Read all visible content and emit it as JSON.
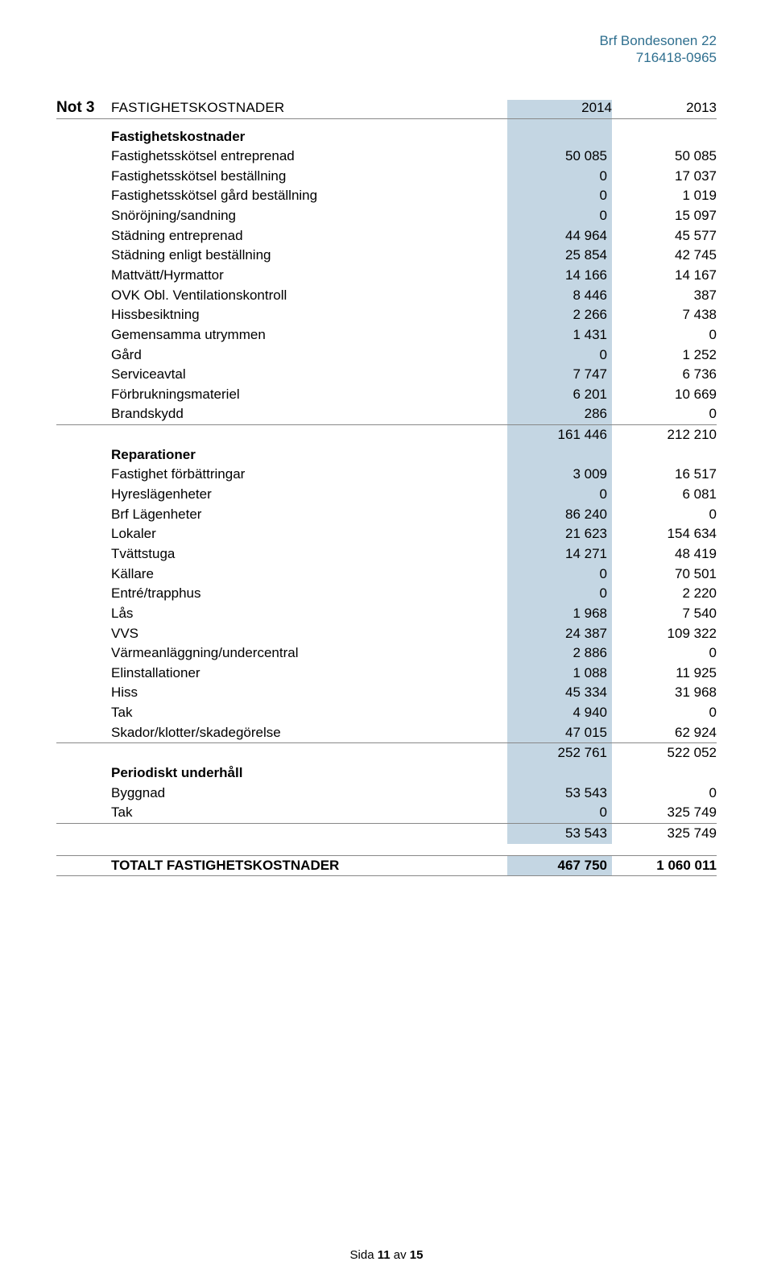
{
  "header": {
    "org_name": "Brf Bondesonen 22",
    "org_number": "716418-0965"
  },
  "note": {
    "number": "Not 3",
    "title": "FASTIGHETSKOSTNADER",
    "year1": "2014",
    "year2": "2013"
  },
  "sections": [
    {
      "heading": "Fastighetskostnader",
      "rows": [
        {
          "label": "Fastighetsskötsel entreprenad",
          "c1": "50 085",
          "c2": "50 085"
        },
        {
          "label": "Fastighetsskötsel beställning",
          "c1": "0",
          "c2": "17 037"
        },
        {
          "label": "Fastighetsskötsel gård beställning",
          "c1": "0",
          "c2": "1 019"
        },
        {
          "label": "Snöröjning/sandning",
          "c1": "0",
          "c2": "15 097"
        },
        {
          "label": "Städning entreprenad",
          "c1": "44 964",
          "c2": "45 577"
        },
        {
          "label": "Städning enligt beställning",
          "c1": "25 854",
          "c2": "42 745"
        },
        {
          "label": "Mattvätt/Hyrmattor",
          "c1": "14 166",
          "c2": "14 167"
        },
        {
          "label": "OVK Obl. Ventilationskontroll",
          "c1": "8 446",
          "c2": "387"
        },
        {
          "label": "Hissbesiktning",
          "c1": "2 266",
          "c2": "7 438"
        },
        {
          "label": "Gemensamma utrymmen",
          "c1": "1 431",
          "c2": "0"
        },
        {
          "label": "Gård",
          "c1": "0",
          "c2": "1 252"
        },
        {
          "label": "Serviceavtal",
          "c1": "7 747",
          "c2": "6 736"
        },
        {
          "label": "Förbrukningsmateriel",
          "c1": "6 201",
          "c2": "10 669"
        },
        {
          "label": "Brandskydd",
          "c1": "286",
          "c2": "0"
        }
      ],
      "subtotal": {
        "c1": "161 446",
        "c2": "212 210"
      }
    },
    {
      "heading": "Reparationer",
      "rows": [
        {
          "label": "Fastighet förbättringar",
          "c1": "3 009",
          "c2": "16 517"
        },
        {
          "label": "Hyreslägenheter",
          "c1": "0",
          "c2": "6 081"
        },
        {
          "label": "Brf Lägenheter",
          "c1": "86 240",
          "c2": "0"
        },
        {
          "label": "Lokaler",
          "c1": "21 623",
          "c2": "154 634"
        },
        {
          "label": "Tvättstuga",
          "c1": "14 271",
          "c2": "48 419"
        },
        {
          "label": "Källare",
          "c1": "0",
          "c2": "70 501"
        },
        {
          "label": "Entré/trapphus",
          "c1": "0",
          "c2": "2 220"
        },
        {
          "label": "Lås",
          "c1": "1 968",
          "c2": "7 540"
        },
        {
          "label": "VVS",
          "c1": "24 387",
          "c2": "109 322"
        },
        {
          "label": "Värmeanläggning/undercentral",
          "c1": "2 886",
          "c2": "0"
        },
        {
          "label": "Elinstallationer",
          "c1": "1 088",
          "c2": "11 925"
        },
        {
          "label": "Hiss",
          "c1": "45 334",
          "c2": "31 968"
        },
        {
          "label": "Tak",
          "c1": "4 940",
          "c2": "0"
        },
        {
          "label": "Skador/klotter/skadegörelse",
          "c1": "47 015",
          "c2": "62 924"
        }
      ],
      "subtotal": {
        "c1": "252 761",
        "c2": "522 052"
      }
    },
    {
      "heading": "Periodiskt underhåll",
      "rows": [
        {
          "label": "Byggnad",
          "c1": "53 543",
          "c2": "0"
        },
        {
          "label": "Tak",
          "c1": "0",
          "c2": "325 749"
        }
      ],
      "subtotal": {
        "c1": "53 543",
        "c2": "325 749"
      }
    }
  ],
  "grand_total": {
    "label": "TOTALT FASTIGHETSKOSTNADER",
    "c1": "467 750",
    "c2": "1 060 011"
  },
  "footer": {
    "prefix": "Sida ",
    "page": "11",
    "of": " av ",
    "total": "15"
  },
  "colors": {
    "highlight": "#c4d6e3",
    "header_text": "#2f6f8f",
    "border": "#888888"
  }
}
